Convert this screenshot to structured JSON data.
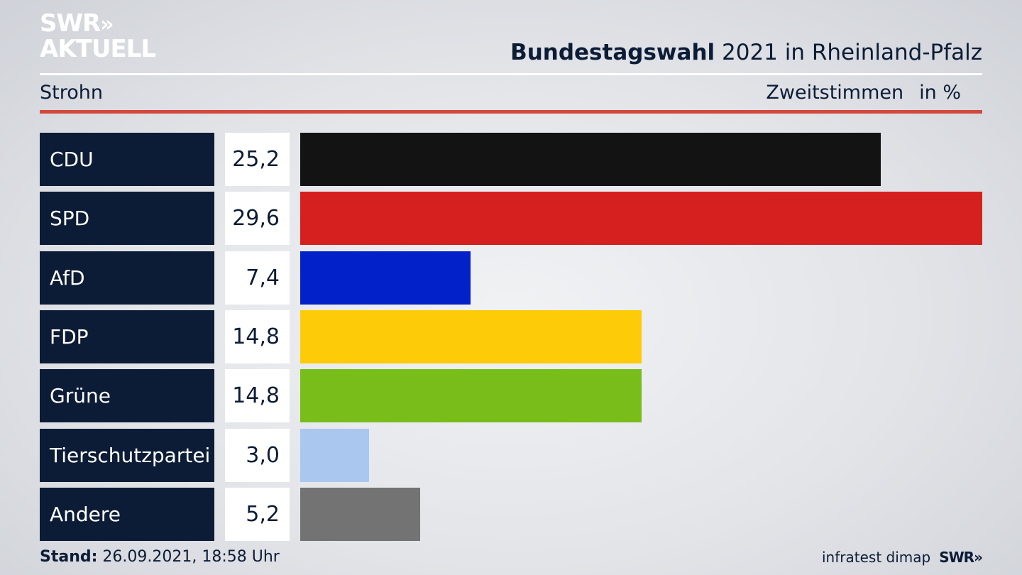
{
  "brand": {
    "logo_line1": "SWR",
    "logo_line2": "AKTUELL",
    "logo_chevrons": "»"
  },
  "header": {
    "title_bold": "Bundestagswahl",
    "title_rest": " 2021 in Rheinland-Pfalz",
    "location": "Strohn",
    "measure": "Zweitstimmen",
    "unit": "in %"
  },
  "chart_data": {
    "type": "bar",
    "orientation": "horizontal",
    "categories": [
      "CDU",
      "SPD",
      "AfD",
      "FDP",
      "Grüne",
      "Tierschutzpartei",
      "Andere"
    ],
    "values": [
      25.2,
      29.6,
      7.4,
      14.8,
      14.8,
      3.0,
      5.2
    ],
    "value_labels": [
      "25,2",
      "29,6",
      "7,4",
      "14,8",
      "14,8",
      "3,0",
      "5,2"
    ],
    "colors": [
      "#131313",
      "#d62020",
      "#0321c9",
      "#fdcb07",
      "#78bd1a",
      "#a9c7ef",
      "#737373"
    ],
    "xlim": [
      0,
      29.6
    ],
    "grid": false,
    "legend": "none"
  },
  "footer": {
    "stand_label": "Stand:",
    "stand_value": " 26.09.2021, 18:58 Uhr",
    "source": "infratest dimap",
    "source_brand": "SWR»"
  }
}
